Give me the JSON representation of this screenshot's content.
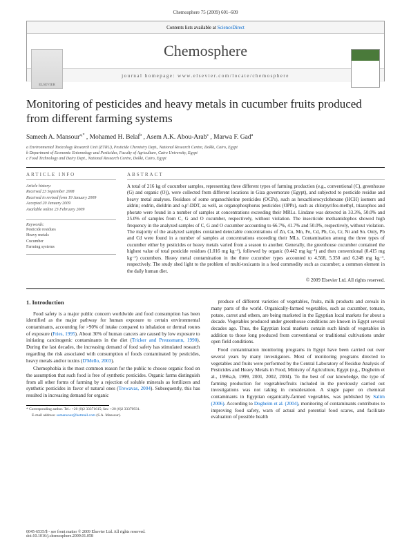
{
  "header": {
    "citation": "Chemosphere 75 (2009) 601–609"
  },
  "journalBox": {
    "topLine_pre": "Contents lists available at ",
    "topLine_link": "ScienceDirect",
    "journalName": "Chemosphere",
    "homepage": "journal homepage: www.elsevier.com/locate/chemosphere",
    "publisherLogo": "ELSEVIER"
  },
  "title": "Monitoring of pesticides and heavy metals in cucumber fruits produced from different farming systems",
  "authors_html": "Sameeh A. Mansour",
  "author1": "Sameeh A. Mansour",
  "author1_sup": "a,*",
  "author2": ", Mohamed H. Belal",
  "author2_sup": "b",
  "author3": ", Asem A.K. Abou-Arab",
  "author3_sup": "c",
  "author4": ", Marwa F. Gad",
  "author4_sup": "a",
  "affiliations": {
    "a": "a Environmental Toxicology Research Unit (ETRU), Pesticide Chemistry Dept., National Research Centre, Dokki, Cairo, Egypt",
    "b": "b Department of Economic Entomology and Pesticides, Faculty of Agriculture, Cairo University, Egypt",
    "c": "c Food Technology and Dairy Dept., National Research Centre, Dokki, Cairo, Egypt"
  },
  "infoHead": "ARTICLE INFO",
  "absHead": "ABSTRACT",
  "history": {
    "l1": "Article history:",
    "l2": "Received 23 September 2008",
    "l3": "Received in revised form 19 January 2009",
    "l4": "Accepted 20 January 2009",
    "l5": "Available online 23 February 2009"
  },
  "keywordsHead": "Keywords:",
  "keywords": {
    "k1": "Pesticide residues",
    "k2": "Heavy metals",
    "k3": "Cucumber",
    "k4": "Farming systems"
  },
  "abstract": "A total of 216 kg of cucumber samples, representing three different types of farming production (e.g., conventional (C), greenhouse (G) and organic (O)), were collected from different locations in Giza governorate (Egypt), and subjected to pesticide residue and heavy metal analyses. Residues of some organochlorine pesticides (OCPs), such as hexachlorocyclohexane (HCH) isomers and aldrin; endrin, dieldrin and o,p'-DDT, as well, as organophosphorus pesticides (OPPs), such as chlorpyrifos-methyl, triazophos and phorate were found in a number of samples at concentrations exceeding their MRLs. Lindane was detected in 33.3%, 50.0% and 25.0% of samples from C, G and O cucumber, respectively, without violation. The insecticide methamidophos showed high frequency in the analyzed samples of C, G and O cucumber accounting to 66.7%, 41.7% and 50.0%, respectively, without violation. The majority of the analyzed samples contained detectable concentrations of Zn, Cu, Mn, Fe, Cd, Pb, Co, Cr, Ni and Sn. Only, Pb and Cd were found in a number of samples at concentrations exceeding their MLs. Contamination among the three types of cucumber either by pesticides or heavy metals varied from a season to another. Generally, the greenhouse cucumber contained the highest value of total pesticide residues (1.016 mg kg⁻¹), followed by organic (0.442 mg kg⁻¹) and then conventional (0.415 mg kg⁻¹) cucumbers. Heavy metal contamination in the three cucumber types accounted to 4.568, 5.350 and 6.248 mg kg⁻¹, respectively. The study shed light to the problem of multi-toxicants in a food commodity such as cucumber; a common element in the daily human diet.",
  "copyright": "© 2009 Elsevier Ltd. All rights reserved.",
  "section1Head": "1. Introduction",
  "body": {
    "p1_a": "Food safety is a major public concern worldwide and food consumption has been identified as the major pathway for human exposure to certain environmental contaminants, accounting for >90% of intake compared to inhalation or dermal routes of exposure (",
    "p1_link1": "Fries, 1995",
    "p1_b": "). About 30% of human cancers are caused by low exposure to initiating carcinogenic contaminants in the diet (",
    "p1_link2": "Tricker and Preussmann, 1990",
    "p1_c": "). During the last decades, the increasing demand of food safety has stimulated research regarding the risk associated with consumption of foods contaminated by pesticides, heavy metals and/or toxins (",
    "p1_link3": "D'Mello, 2003",
    "p1_d": ").",
    "p2_a": "Chemophobia is the most common reason for the public to choose organic food on the assumption that such food is free of synthetic pesticides. Organic farms distinguish from all other forms of farming by a rejection of soluble minerals as fertilizers and synthetic pesticides in favor of natural ones (",
    "p2_link1": "Trewavas, 2004",
    "p2_b": "). Subsequently, this has resulted in increasing demand for organic",
    "p3_a": "produce of different varieties of vegetables, fruits, milk products and cereals in many parts of the world. Organically-farmed vegetables, such as cucumber, tomato, potato, carrot and others, are being marketed in the Egyptian local markets for about a decade. Vegetables produced under greenhouse conditions are known in Egypt several decades ago. Thus, the Egyptian local markets contain such kinds of vegetables in addition to those long produced from conventional or traditional cultivations under open field conditions.",
    "p4_a": "Food contamination monitoring programs in Egypt have been carried out over several years by many investigators. Most of monitoring programs directed to vegetables and fruits were performed by the Central Laboratory of Residue Analysis of Pesticides and Heavy Metals in Food, Ministry of Agriculture, Egypt (e.g., Dogheim et al., 1996a,b, 1999, 2001, 2002, 2004). To the best of our knowledge, the type of farming production for vegetables/fruits included in the previously carried out investigations was not taking in consideration. A single paper on chemical contaminants in Egyptian organically-farmed vegetables, was published by ",
    "p4_link1": "Salim (2006)",
    "p4_b": ". According to ",
    "p4_link2": "Dogheim et al. (2004)",
    "p4_c": ", monitoring of contaminants contributes to improving food safety, warn of actual and potential food scares, and facilitate evaluation of possible health"
  },
  "footnote": {
    "corr": "* Corresponding author. Tel.: +20 (0)2 33371615; fax: +20 (0)2 33370931.",
    "email_pre": "E-mail address: ",
    "email": "samansour@hotmail.com",
    "email_post": " (S.A. Mansour)."
  },
  "footer": {
    "line1": "0045-6535/$ - see front matter © 2009 Elsevier Ltd. All rights reserved.",
    "line2": "doi:10.1016/j.chemosphere.2009.01.058"
  }
}
